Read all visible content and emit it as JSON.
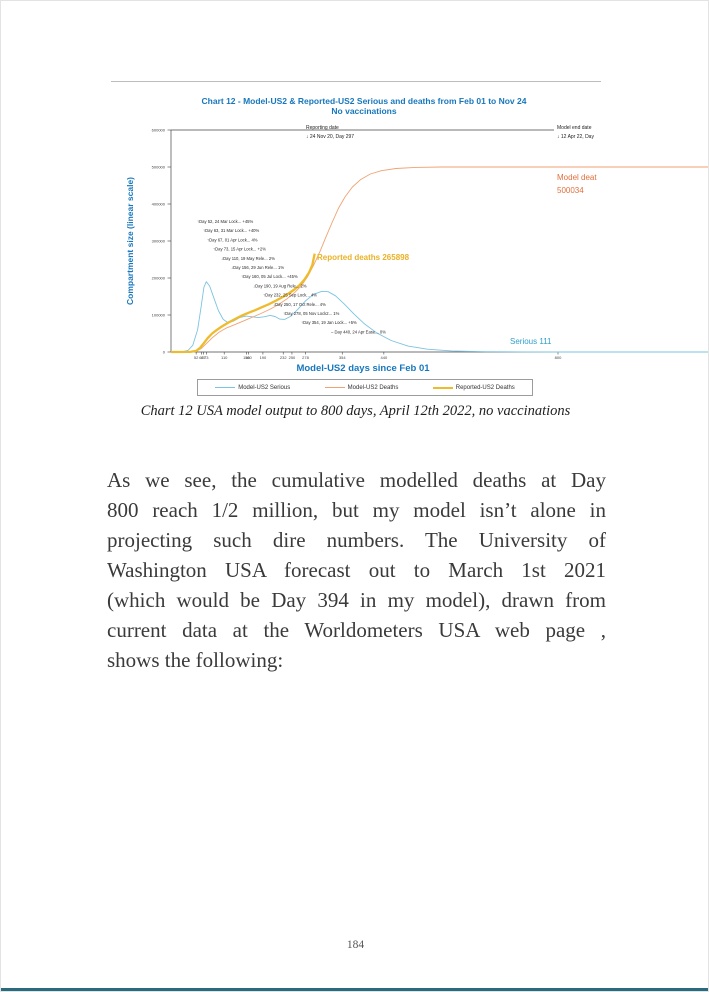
{
  "page": {
    "number": "184"
  },
  "chart": {
    "title_line1": "Chart 12 - Model-US2 & Reported-US2 Serious and deaths from Feb 01 to Nov 24",
    "title_line2": "No vaccinations",
    "y_axis_label": "Compartment size (linear scale)",
    "accent_blue": "#1777bd"
  },
  "chart_data": {
    "type": "line",
    "title": "Chart 12 - Model-US2 & Reported-US2 Serious and deaths from Feb 01 to Nov 24 — No vaccinations",
    "xlabel": "Model-US2 days since Feb 01",
    "ylabel": "Compartment size (linear scale)",
    "xlim": [
      0,
      1110
    ],
    "ylim": [
      0,
      600000
    ],
    "yticks": [
      0,
      100000,
      200000,
      300000,
      400000,
      500000,
      600000
    ],
    "xticks": [
      52,
      63,
      67,
      73,
      110,
      156,
      160,
      190,
      232,
      250,
      278,
      354,
      440,
      800
    ],
    "grid": false,
    "legend_position": "bottom",
    "series": [
      {
        "name": "Model-US2 Serious",
        "color": "#7cc3e0",
        "lw": 0.9,
        "points": [
          [
            0,
            0
          ],
          [
            25,
            1000
          ],
          [
            35,
            4000
          ],
          [
            45,
            18000
          ],
          [
            55,
            60000
          ],
          [
            62,
            120000
          ],
          [
            68,
            175000
          ],
          [
            73,
            190000
          ],
          [
            80,
            178000
          ],
          [
            88,
            148000
          ],
          [
            98,
            112000
          ],
          [
            108,
            88000
          ],
          [
            118,
            79000
          ],
          [
            130,
            84000
          ],
          [
            142,
            93000
          ],
          [
            155,
            97000
          ],
          [
            168,
            95000
          ],
          [
            180,
            93000
          ],
          [
            192,
            95000
          ],
          [
            205,
            99000
          ],
          [
            215,
            96000
          ],
          [
            225,
            89000
          ],
          [
            235,
            88000
          ],
          [
            248,
            97000
          ],
          [
            262,
            115000
          ],
          [
            278,
            138000
          ],
          [
            295,
            156000
          ],
          [
            312,
            164000
          ],
          [
            325,
            163000
          ],
          [
            340,
            152000
          ],
          [
            358,
            130000
          ],
          [
            378,
            103000
          ],
          [
            400,
            76000
          ],
          [
            425,
            52000
          ],
          [
            455,
            31000
          ],
          [
            490,
            16000
          ],
          [
            530,
            7500
          ],
          [
            580,
            3000
          ],
          [
            650,
            900
          ],
          [
            730,
            250
          ],
          [
            800,
            111
          ],
          [
            900,
            40
          ],
          [
            1110,
            15
          ]
        ]
      },
      {
        "name": "Model-US2 Deaths",
        "color": "#f0a273",
        "lw": 0.9,
        "points": [
          [
            0,
            0
          ],
          [
            40,
            500
          ],
          [
            52,
            2500
          ],
          [
            62,
            9000
          ],
          [
            72,
            21000
          ],
          [
            85,
            38000
          ],
          [
            100,
            54000
          ],
          [
            115,
            65000
          ],
          [
            132,
            74000
          ],
          [
            150,
            84000
          ],
          [
            168,
            94000
          ],
          [
            186,
            104000
          ],
          [
            205,
            116000
          ],
          [
            222,
            128000
          ],
          [
            240,
            144000
          ],
          [
            255,
            160000
          ],
          [
            270,
            180000
          ],
          [
            283,
            205000
          ],
          [
            295,
            235000
          ],
          [
            308,
            272000
          ],
          [
            320,
            310000
          ],
          [
            333,
            350000
          ],
          [
            346,
            388000
          ],
          [
            360,
            420000
          ],
          [
            375,
            446000
          ],
          [
            392,
            466000
          ],
          [
            412,
            481000
          ],
          [
            435,
            490000
          ],
          [
            465,
            496000
          ],
          [
            505,
            499000
          ],
          [
            560,
            500000
          ],
          [
            640,
            500034
          ],
          [
            1110,
            500034
          ]
        ]
      },
      {
        "name": "Reported-US2 Deaths",
        "color": "#eebb2c",
        "lw": 2.3,
        "points": [
          [
            0,
            0
          ],
          [
            40,
            400
          ],
          [
            52,
            3000
          ],
          [
            60,
            11000
          ],
          [
            68,
            24000
          ],
          [
            76,
            38000
          ],
          [
            85,
            50000
          ],
          [
            95,
            60000
          ],
          [
            105,
            69000
          ],
          [
            118,
            79000
          ],
          [
            132,
            89000
          ],
          [
            146,
            98000
          ],
          [
            160,
            106000
          ],
          [
            174,
            113000
          ],
          [
            188,
            121000
          ],
          [
            202,
            129000
          ],
          [
            216,
            138000
          ],
          [
            230,
            148000
          ],
          [
            243,
            158000
          ],
          [
            255,
            169000
          ],
          [
            266,
            181000
          ],
          [
            276,
            196000
          ],
          [
            285,
            214000
          ],
          [
            292,
            235000
          ],
          [
            297,
            265898
          ]
        ]
      }
    ],
    "annotations": [
      "↑Day 52, 24 Mar Lock... +45%",
      "↑Day 63, 31 Mar Lock... +40%",
      "↑Day 67, 01 Apr Lock... 4%",
      "↑Day 73, 15 Apr Lock... +2%",
      "↓Day 110, 19 May Rele... 2%",
      "↓Day 156, 29 Jun Rele... 1%",
      "↑Day 160, 05 Jul Lock... +45%",
      "↓Day 190, 19 Aug Rele... 2%",
      "↑Day 232, 25 Sep Lock... 4%",
      "↓Day 250, 17 Oct Rele... 4%",
      "↑Day 278, 05 Nov Lock2... 1%",
      "↑Day 354, 19 Jan Lock... +5%",
      "– Day 440, 24 Apr Ease... 0%"
    ],
    "labels": {
      "reporting_date_line1": "Reporting date",
      "reporting_date_line2": "↓ 24 Nov 20, Day 297",
      "model_end_line1": "Model end date",
      "model_end_line2": "↓ 12 Apr 22, Day",
      "model_deaths_line1": "Model deat",
      "model_deaths_line2": "500034",
      "reported_deaths": "Reported deaths 265898",
      "serious": "Serious 111"
    }
  },
  "caption": "Chart 12 USA model output to 800 days, April 12th 2022, no vaccinations",
  "body": {
    "lines": [
      "As we see, the cumulative modelled deaths at Day",
      "800 reach 1/2 million, but my model isn’t alone in",
      "projecting such dire numbers. The University of",
      "Washington USA forecast out to March 1st 2021",
      "(which would be Day 394 in my model), drawn from",
      "current data at the Worldometers USA web page ,",
      "shows the following:"
    ]
  }
}
